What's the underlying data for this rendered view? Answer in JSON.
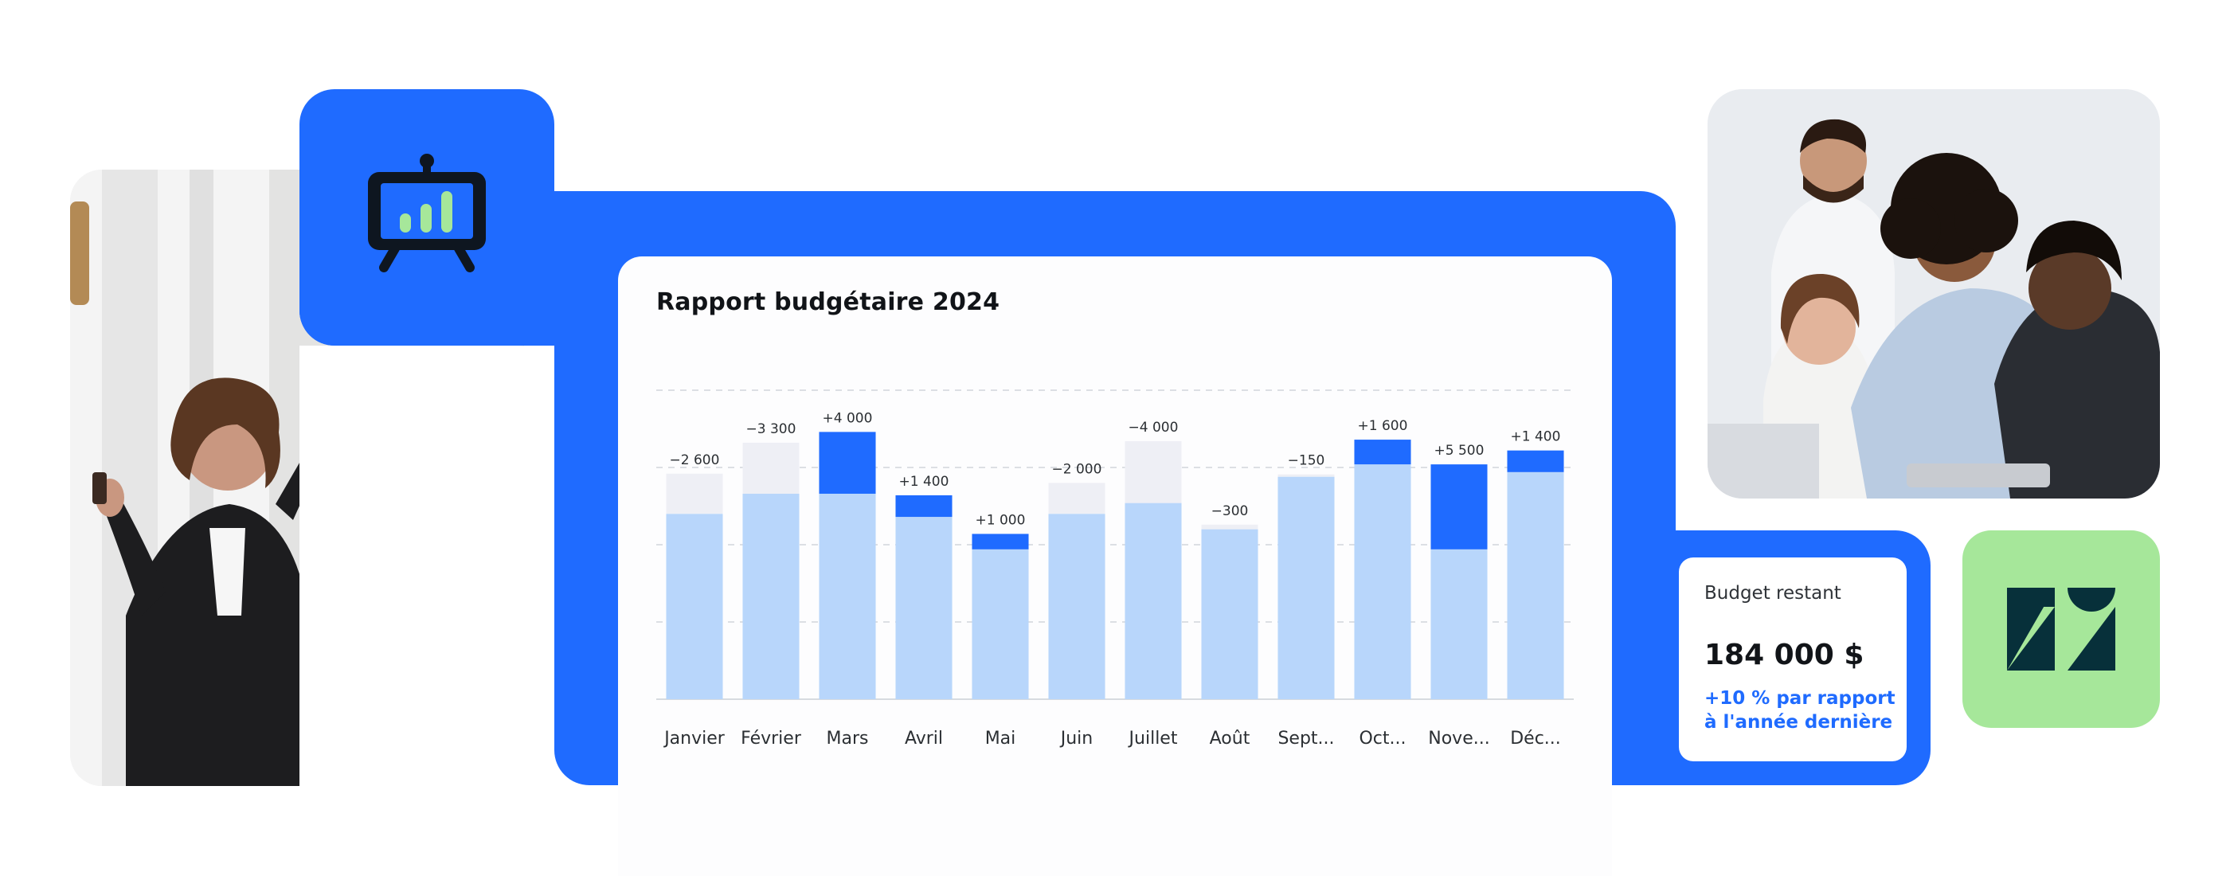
{
  "chart": {
    "title": "Rapport budgétaire 2024"
  },
  "budget": {
    "label": "Budget restant",
    "value": "184 000 $",
    "change": "+10 % par rapport à l'année dernière"
  },
  "colors": {
    "brand_blue": "#1f6bff",
    "bar_light": "#b8d6fb",
    "bar_ghost": "#eeeff5",
    "zendesk_green": "#a6e79a",
    "zendesk_dark": "#07303a"
  },
  "icons": {
    "presentation": "presentation-board-icon",
    "zendesk": "zendesk-logo"
  },
  "chart_data": {
    "type": "bar",
    "title": "Rapport budgétaire 2024",
    "categories": [
      "Janvier",
      "Février",
      "Mars",
      "Avril",
      "Mai",
      "Juin",
      "Juillet",
      "Août",
      "Sept...",
      "Oct...",
      "Nove...",
      "Déc..."
    ],
    "series": [
      {
        "values": [
          12000,
          13300,
          13300,
          11800,
          9700,
          12000,
          12700,
          11000,
          14400,
          15200,
          9700,
          14700
        ]
      }
    ],
    "variance": [
      -2600,
      -3300,
      4000,
      1400,
      1000,
      -2000,
      -4000,
      -300,
      -150,
      1600,
      5500,
      1400
    ],
    "variance_labels": [
      "−2 600",
      "−3 300",
      "+4 000",
      "+1 400",
      "+1 000",
      "−2 000",
      "−4 000",
      "−300",
      "−150",
      "+1 600",
      "+5 500",
      "+1 400"
    ],
    "ylim": [
      0,
      20000
    ],
    "grid": true
  }
}
